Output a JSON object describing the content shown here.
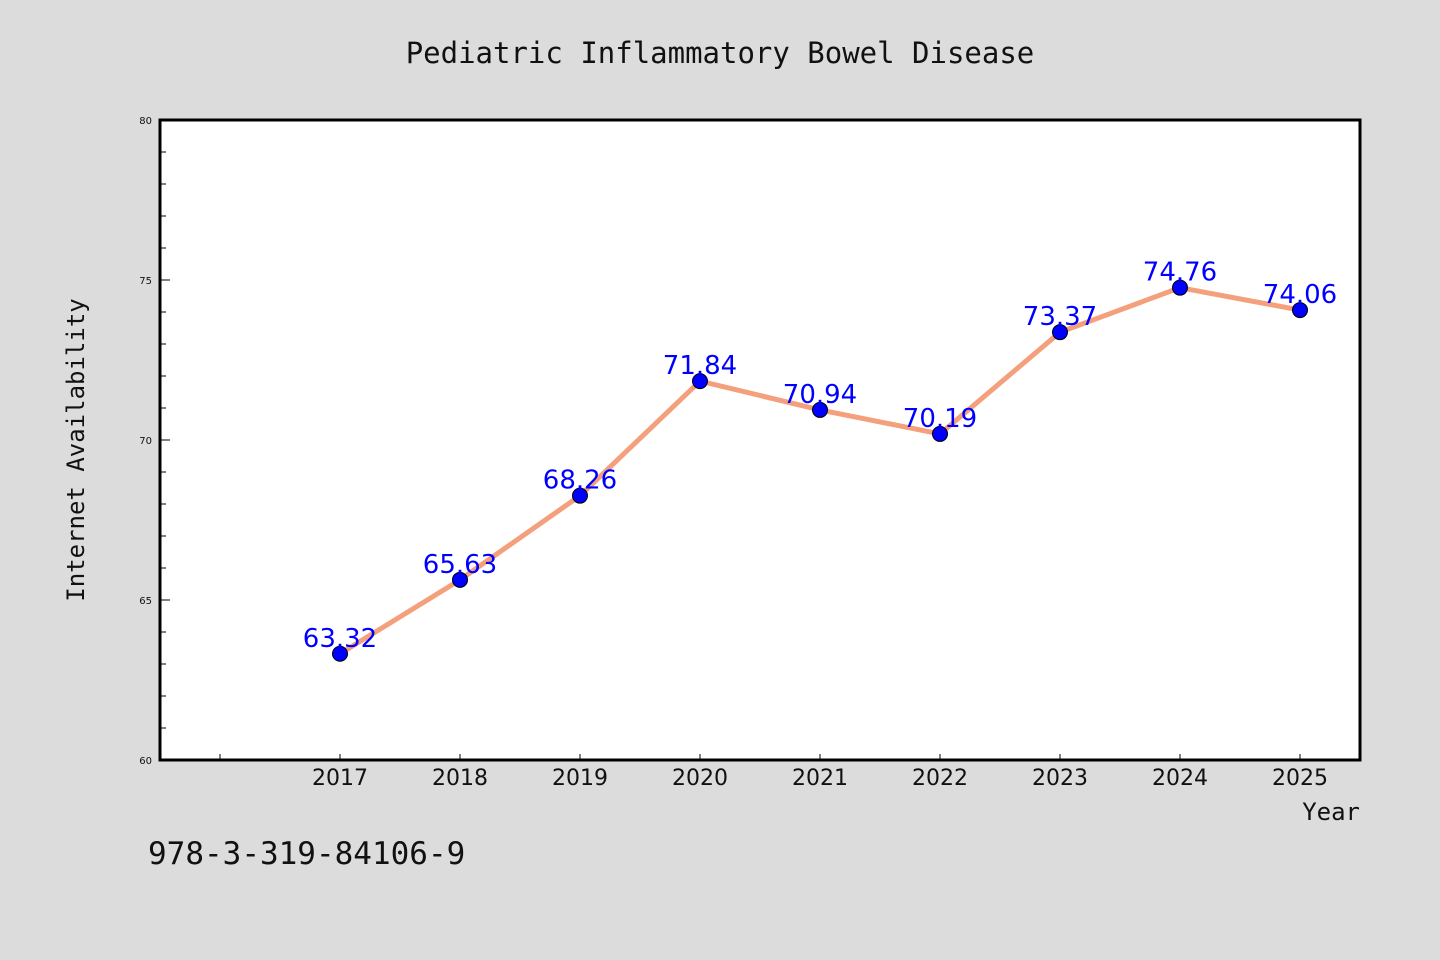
{
  "chart_data": {
    "type": "line",
    "title": "Pediatric Inflammatory Bowel Disease",
    "xlabel": "Year",
    "ylabel": "Internet Availability",
    "categories": [
      "2017",
      "2018",
      "2019",
      "2020",
      "2021",
      "2022",
      "2023",
      "2024",
      "2025"
    ],
    "series": [
      {
        "values": [
          63.32,
          65.63,
          68.26,
          71.84,
          70.94,
          70.19,
          73.37,
          74.76,
          74.06
        ]
      }
    ],
    "data_labels": [
      "63.32",
      "65.63",
      "68.26",
      "71.84",
      "70.94",
      "70.19",
      "73.37",
      "74.76",
      "74.06"
    ],
    "ylim": [
      60,
      80
    ],
    "yticks": [
      "60",
      "65",
      "70",
      "75",
      "80"
    ],
    "grid": false,
    "line_color": "#f4a07c",
    "marker_color": "#0000ff",
    "label_color": "#0000ff"
  },
  "footer": {
    "isbn": "978-3-319-84106-9"
  }
}
